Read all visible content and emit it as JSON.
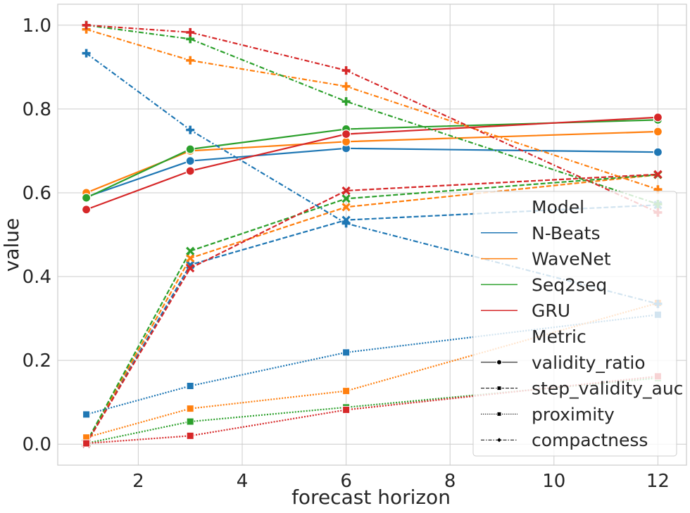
{
  "chart_data": {
    "type": "line",
    "xlabel": "forecast horizon",
    "ylabel": "value",
    "xlim": [
      0.45,
      12.55
    ],
    "ylim": [
      -0.05,
      1.05
    ],
    "x_ticks": [
      2,
      4,
      6,
      8,
      10,
      12
    ],
    "y_ticks": [
      0.0,
      0.2,
      0.4,
      0.6,
      0.8,
      1.0
    ],
    "x_tick_labels": [
      "2",
      "4",
      "6",
      "8",
      "10",
      "12"
    ],
    "y_tick_labels": [
      "0.0",
      "0.2",
      "0.4",
      "0.6",
      "0.8",
      "1.0"
    ],
    "grid": true,
    "x": [
      1,
      3,
      6,
      12
    ],
    "models": [
      {
        "name": "N-Beats",
        "color": "#1f77b4"
      },
      {
        "name": "WaveNet",
        "color": "#ff7f0e"
      },
      {
        "name": "Seq2seq",
        "color": "#2ca02c"
      },
      {
        "name": "GRU",
        "color": "#d62728"
      }
    ],
    "metrics": [
      {
        "name": "validity_ratio",
        "line_style": "solid",
        "marker": "circle"
      },
      {
        "name": "step_validity_auc",
        "line_style": "dashed",
        "marker": "x"
      },
      {
        "name": "proximity",
        "line_style": "dotted",
        "marker": "square"
      },
      {
        "name": "compactness",
        "line_style": "dashdot",
        "marker": "plus"
      }
    ],
    "series": [
      {
        "model": "N-Beats",
        "metric": "validity_ratio",
        "values": [
          0.59,
          0.676,
          0.706,
          0.697
        ]
      },
      {
        "model": "WaveNet",
        "metric": "validity_ratio",
        "values": [
          0.6,
          0.7,
          0.722,
          0.746
        ]
      },
      {
        "model": "Seq2seq",
        "metric": "validity_ratio",
        "values": [
          0.588,
          0.704,
          0.752,
          0.774
        ]
      },
      {
        "model": "GRU",
        "metric": "validity_ratio",
        "values": [
          0.56,
          0.652,
          0.74,
          0.78
        ]
      },
      {
        "model": "N-Beats",
        "metric": "step_validity_auc",
        "values": [
          0.002,
          0.428,
          0.535,
          0.571
        ]
      },
      {
        "model": "WaveNet",
        "metric": "step_validity_auc",
        "values": [
          0.003,
          0.444,
          0.566,
          0.643
        ]
      },
      {
        "model": "Seq2seq",
        "metric": "step_validity_auc",
        "values": [
          0.004,
          0.461,
          0.586,
          0.643
        ]
      },
      {
        "model": "GRU",
        "metric": "step_validity_auc",
        "values": [
          0.001,
          0.42,
          0.605,
          0.644
        ]
      },
      {
        "model": "N-Beats",
        "metric": "proximity",
        "values": [
          0.071,
          0.139,
          0.219,
          0.309
        ]
      },
      {
        "model": "WaveNet",
        "metric": "proximity",
        "values": [
          0.016,
          0.085,
          0.127,
          0.337
        ]
      },
      {
        "model": "Seq2seq",
        "metric": "proximity",
        "values": [
          0.002,
          0.054,
          0.088,
          0.158
        ]
      },
      {
        "model": "GRU",
        "metric": "proximity",
        "values": [
          0.002,
          0.02,
          0.082,
          0.162
        ]
      },
      {
        "model": "N-Beats",
        "metric": "compactness",
        "values": [
          0.933,
          0.75,
          0.527,
          0.335
        ]
      },
      {
        "model": "WaveNet",
        "metric": "compactness",
        "values": [
          0.99,
          0.916,
          0.854,
          0.608
        ]
      },
      {
        "model": "Seq2seq",
        "metric": "compactness",
        "values": [
          1.0,
          0.967,
          0.818,
          0.573
        ]
      },
      {
        "model": "GRU",
        "metric": "compactness",
        "values": [
          1.0,
          0.983,
          0.892,
          0.553
        ]
      }
    ],
    "legend": {
      "placement": "lower right",
      "model_header": "Model",
      "metric_header": "Metric",
      "marker_color": "#000000"
    }
  }
}
